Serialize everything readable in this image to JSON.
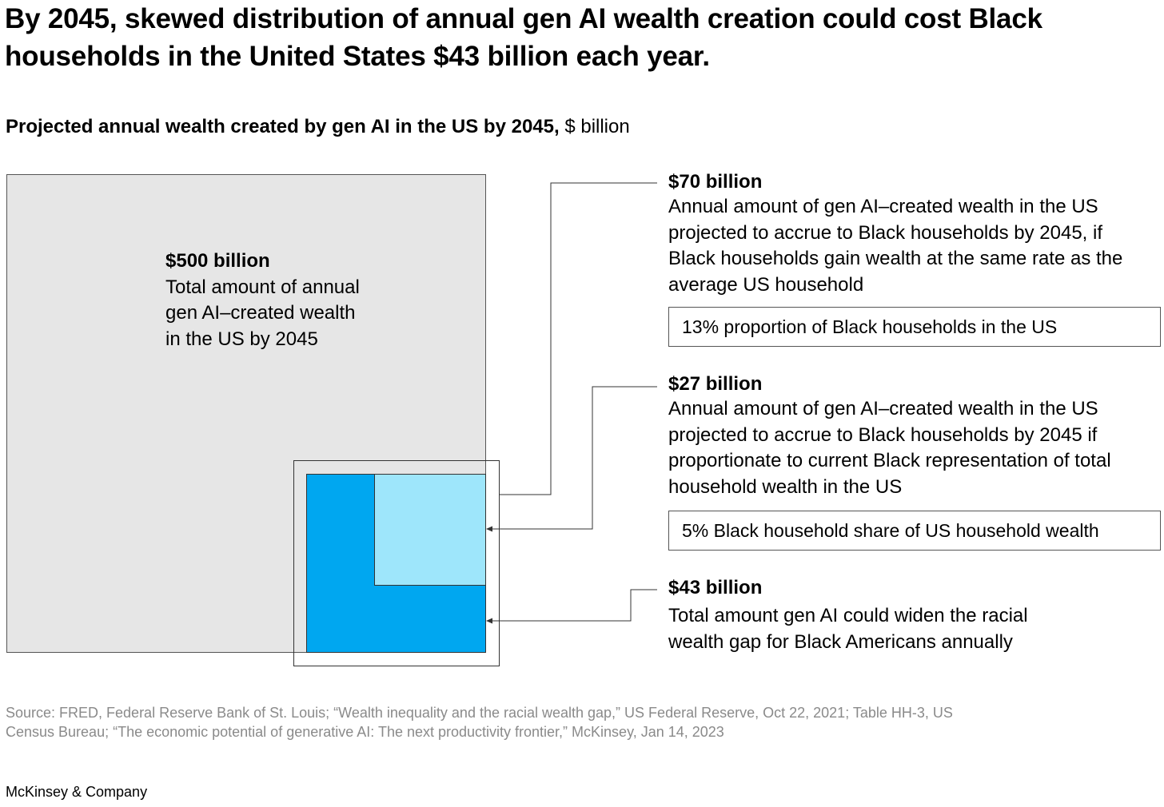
{
  "title": "By 2045, skewed distribution of annual gen AI wealth creation could cost Black households in the United States $43 billion each year.",
  "subtitle_bold": "Projected annual wealth created by gen AI in the US by 2045,",
  "subtitle_unit": " $ billion",
  "chart_data": {
    "type": "nested-area",
    "unit": "$ billion",
    "items": [
      {
        "value": 500,
        "label": "$500 billion",
        "description": "Total amount of annual gen AI–created wealth in the US by 2045",
        "color": "#e6e6e6"
      },
      {
        "value": 70,
        "label": "$70 billion",
        "description": "Annual amount of gen AI–created wealth in the US projected to accrue to Black households by 2045, if Black households gain wealth at the same rate as the average US household",
        "note": "13% proportion of Black households in the US"
      },
      {
        "value": 27,
        "label": "$27 billion",
        "description": "Annual amount of gen AI–created wealth in the US projected to accrue to Black households by 2045 if proportionate to current Black representation of total household wealth in the US",
        "note": "5% Black household share of US household wealth",
        "color": "#9ee6fb"
      },
      {
        "value": 43,
        "label": "$43 billion",
        "description": "Total amount gen AI could widen the racial wealth gap for Black Americans annually",
        "color": "#00a7f0"
      }
    ]
  },
  "labels": {
    "big_value": "$500 billion",
    "big_desc": "Total amount of annual gen AI–created wealth in the US by 2045",
    "c1_value": "$70 billion",
    "c1_desc": "Annual amount of gen AI–created wealth in the US projected to accrue to Black households by 2045, if Black households gain wealth at the same rate as the average US household",
    "c1_note": "13% proportion of Black households in the US",
    "c2_value": "$27 billion",
    "c2_desc": "Annual amount of gen AI–created wealth in the US projected to accrue to Black households by 2045 if proportionate to current Black representation of total household wealth in the US",
    "c2_note": "5% Black household share of US household wealth",
    "c3_value": "$43 billion",
    "c3_desc": "Total amount gen AI could widen the racial wealth gap for Black Americans annually"
  },
  "source": "Source: FRED, Federal Reserve Bank of St. Louis; “Wealth inequality and the racial wealth gap,” US Federal Reserve, Oct 22, 2021; Table HH-3, US Census Bureau; “The economic potential of generative AI: The next productivity frontier,” McKinsey, Jan 14, 2023",
  "brand": "McKinsey & Company"
}
